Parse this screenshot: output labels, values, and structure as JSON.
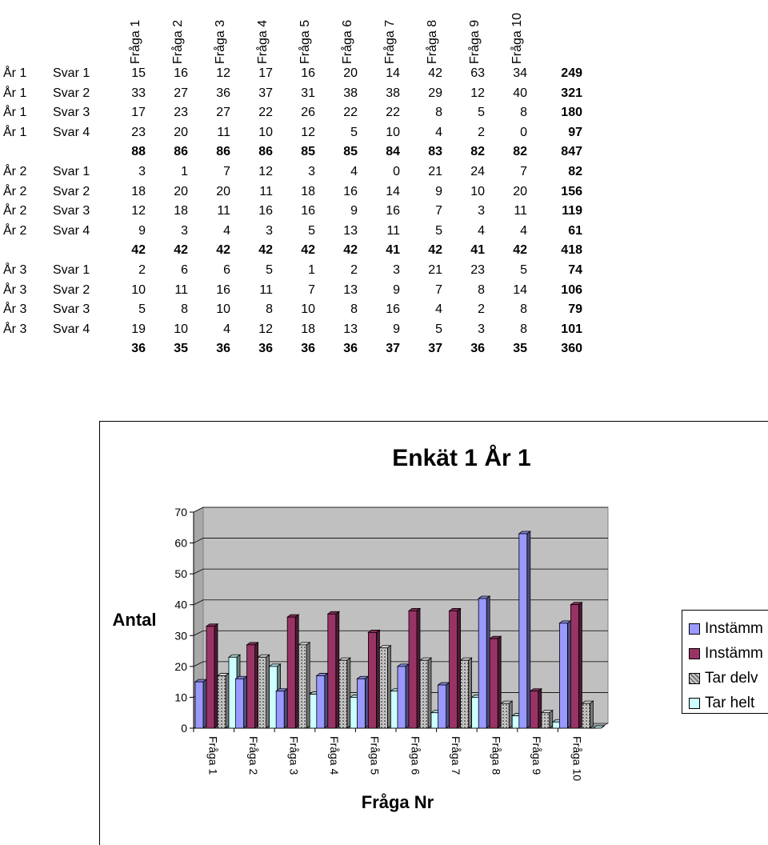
{
  "table": {
    "col_headers": [
      "Fråga 1",
      "Fråga 2",
      "Fråga 3",
      "Fråga 4",
      "Fråga 5",
      "Fråga 6",
      "Fråga 7",
      "Fråga 8",
      "Fråga 9",
      "Fråga 10"
    ],
    "rows": [
      {
        "year": "År 1",
        "svar": "Svar 1",
        "values": [
          "15",
          "16",
          "12",
          "17",
          "16",
          "20",
          "14",
          "42",
          "63",
          "34"
        ],
        "total": "249"
      },
      {
        "year": "År 1",
        "svar": "Svar 2",
        "values": [
          "33",
          "27",
          "36",
          "37",
          "31",
          "38",
          "38",
          "29",
          "12",
          "40"
        ],
        "total": "321"
      },
      {
        "year": "År 1",
        "svar": "Svar 3",
        "values": [
          "17",
          "23",
          "27",
          "22",
          "26",
          "22",
          "22",
          "8",
          "5",
          "8"
        ],
        "total": "180"
      },
      {
        "year": "År 1",
        "svar": "Svar 4",
        "values": [
          "23",
          "20",
          "11",
          "10",
          "12",
          "5",
          "10",
          "4",
          "2",
          "0"
        ],
        "total": "97"
      },
      {
        "year": "",
        "svar": "",
        "values": [
          "88",
          "86",
          "86",
          "86",
          "85",
          "85",
          "84",
          "83",
          "82",
          "82"
        ],
        "total": "847",
        "sum": true
      },
      {
        "year": "År 2",
        "svar": "Svar 1",
        "values": [
          "3",
          "1",
          "7",
          "12",
          "3",
          "4",
          "0",
          "21",
          "24",
          "7"
        ],
        "total": "82"
      },
      {
        "year": "År 2",
        "svar": "Svar 2",
        "values": [
          "18",
          "20",
          "20",
          "11",
          "18",
          "16",
          "14",
          "9",
          "10",
          "20"
        ],
        "total": "156"
      },
      {
        "year": "År 2",
        "svar": "Svar 3",
        "values": [
          "12",
          "18",
          "11",
          "16",
          "16",
          "9",
          "16",
          "7",
          "3",
          "11"
        ],
        "total": "119"
      },
      {
        "year": "År 2",
        "svar": "Svar 4",
        "values": [
          "9",
          "3",
          "4",
          "3",
          "5",
          "13",
          "11",
          "5",
          "4",
          "4"
        ],
        "total": "61"
      },
      {
        "year": "",
        "svar": "",
        "values": [
          "42",
          "42",
          "42",
          "42",
          "42",
          "42",
          "41",
          "42",
          "41",
          "42"
        ],
        "total": "418",
        "sum": true
      },
      {
        "year": "År 3",
        "svar": "Svar 1",
        "values": [
          "2",
          "6",
          "6",
          "5",
          "1",
          "2",
          "3",
          "21",
          "23",
          "5"
        ],
        "total": "74"
      },
      {
        "year": "År 3",
        "svar": "Svar 2",
        "values": [
          "10",
          "11",
          "16",
          "11",
          "7",
          "13",
          "9",
          "7",
          "8",
          "14"
        ],
        "total": "106"
      },
      {
        "year": "År 3",
        "svar": "Svar 3",
        "values": [
          "5",
          "8",
          "10",
          "8",
          "10",
          "8",
          "16",
          "4",
          "2",
          "8"
        ],
        "total": "79"
      },
      {
        "year": "År 3",
        "svar": "Svar 4",
        "values": [
          "19",
          "10",
          "4",
          "12",
          "18",
          "13",
          "9",
          "5",
          "3",
          "8"
        ],
        "total": "101"
      },
      {
        "year": "",
        "svar": "",
        "values": [
          "36",
          "35",
          "36",
          "36",
          "36",
          "36",
          "37",
          "37",
          "36",
          "35"
        ],
        "total": "360",
        "sum": true
      }
    ]
  },
  "chart_data": {
    "type": "bar",
    "title": "Enkät 1 År 1",
    "xlabel": "Fråga Nr",
    "ylabel": "Antal",
    "ylim": [
      0,
      70
    ],
    "yticks": [
      "0",
      "10",
      "20",
      "30",
      "40",
      "50",
      "60",
      "70"
    ],
    "grid": true,
    "legend_position": "right",
    "categories": [
      "Fråga 1",
      "Fråga 2",
      "Fråga 3",
      "Fråga 4",
      "Fråga 5",
      "Fråga 6",
      "Fråga 7",
      "Fråga 8",
      "Fråga 9",
      "Fråga 10"
    ],
    "series": [
      {
        "name": "Instämm",
        "color": "#9999ff",
        "values": [
          15,
          16,
          12,
          17,
          16,
          20,
          14,
          42,
          63,
          34
        ]
      },
      {
        "name": "Instämm",
        "color": "#993366",
        "values": [
          33,
          27,
          36,
          37,
          31,
          38,
          38,
          29,
          12,
          40
        ]
      },
      {
        "name": "Tar delv",
        "color": "#c0c0c0",
        "pattern": true,
        "values": [
          17,
          23,
          27,
          22,
          26,
          22,
          22,
          8,
          5,
          8
        ]
      },
      {
        "name": "Tar helt",
        "color": "#ccffff",
        "values": [
          23,
          20,
          11,
          10,
          12,
          5,
          10,
          4,
          2,
          0
        ]
      }
    ],
    "plot_background": "#c0c0c0"
  }
}
